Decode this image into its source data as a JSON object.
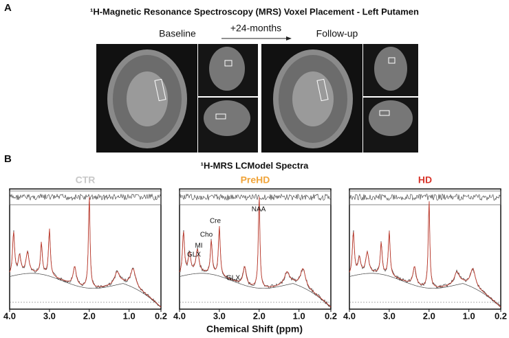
{
  "panel_a": {
    "label": "A",
    "title": "¹H-Magnetic Resonance Spectroscopy (MRS) Voxel Placement - Left Putamen",
    "baseline": "Baseline",
    "interval": "+24-months",
    "followup": "Follow-up"
  },
  "panel_b": {
    "label": "B",
    "title": "¹H-MRS LCModel Spectra",
    "xlabel": "Chemical Shift (ppm)",
    "xlim": [
      4,
      0.2
    ],
    "xticks": [
      {
        "value": 4,
        "label": "4.0"
      },
      {
        "value": 3,
        "label": "3.0"
      },
      {
        "value": 2,
        "label": "2.0"
      },
      {
        "value": 1,
        "label": "1.0"
      },
      0.2
    ],
    "groups": [
      {
        "name": "CTR",
        "color": "#c8c8c8"
      },
      {
        "name": "PreHD",
        "color": "#f0a43a"
      },
      {
        "name": "HD",
        "color": "#d8362c"
      }
    ],
    "peak_labels": [
      "NAA",
      "Cre",
      "Cho",
      "MI",
      "GLX",
      "GLX"
    ]
  }
}
